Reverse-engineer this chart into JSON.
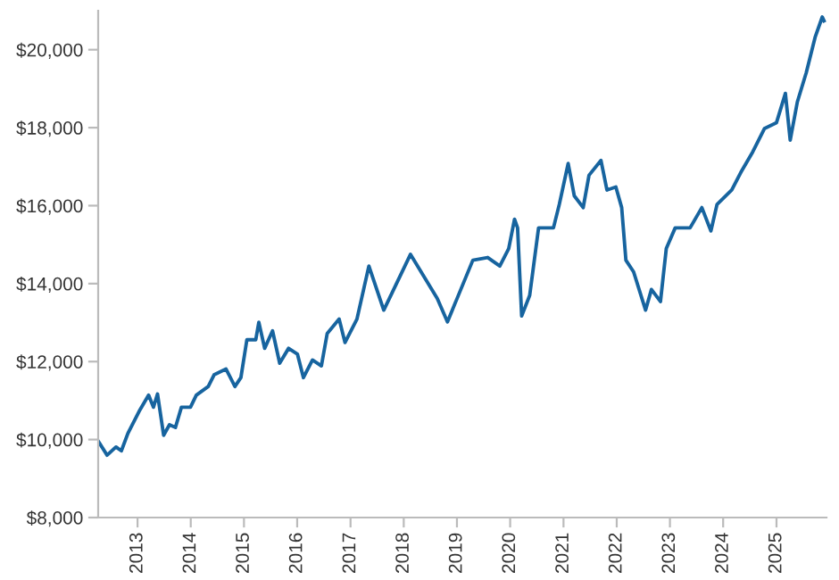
{
  "chart_data": {
    "type": "line",
    "color": "#17649f",
    "x": [
      "2012-04-06",
      "2012-06-06",
      "2012-08-06",
      "2012-09-12",
      "2012-10-27",
      "2013-01-17",
      "2013-03-18",
      "2013-04-20",
      "2013-05-18",
      "2013-06-29",
      "2013-08-08",
      "2013-09-18",
      "2013-10-29",
      "2013-12-30",
      "2014-02-08",
      "2014-05-01",
      "2014-06-10",
      "2014-08-31",
      "2014-10-31",
      "2014-12-11",
      "2015-01-21",
      "2015-03-23",
      "2015-04-13",
      "2015-05-23",
      "2015-07-16",
      "2015-09-03",
      "2015-11-03",
      "2016-01-03",
      "2016-02-13",
      "2016-04-15",
      "2016-06-15",
      "2016-07-25",
      "2016-10-15",
      "2016-11-24",
      "2017-02-14",
      "2017-05-07",
      "2017-08-17",
      "2018-02-16",
      "2018-08-19",
      "2018-10-28",
      "2019-04-20",
      "2019-07-31",
      "2019-10-22",
      "2019-12-22",
      "2020-01-31",
      "2020-02-21",
      "2020-03-20",
      "2020-05-14",
      "2020-07-14",
      "2020-10-24",
      "2020-12-03",
      "2021-02-02",
      "2021-03-16",
      "2021-05-16",
      "2021-06-25",
      "2021-09-15",
      "2021-10-26",
      "2021-12-26",
      "2022-02-04",
      "2022-03-05",
      "2022-04-27",
      "2022-07-18",
      "2022-08-27",
      "2022-10-28",
      "2022-12-07",
      "2023-02-06",
      "2023-05-19",
      "2023-08-08",
      "2023-10-09",
      "2023-11-20",
      "2024-02-29",
      "2024-05-01",
      "2024-07-22",
      "2024-10-11",
      "2025-01-01",
      "2025-03-03",
      "2025-04-05",
      "2025-05-24",
      "2025-07-24",
      "2025-09-23",
      "2025-11-11",
      "2025-11-23"
    ],
    "values": [
      9960,
      9600,
      9810,
      9710,
      10160,
      10760,
      11140,
      10830,
      11170,
      10110,
      10380,
      10310,
      10830,
      10830,
      11140,
      11360,
      11660,
      11810,
      11360,
      11590,
      12560,
      12560,
      13010,
      12340,
      12790,
      11960,
      12340,
      12190,
      11590,
      12040,
      11890,
      12720,
      13090,
      12490,
      13090,
      14450,
      13320,
      14750,
      13620,
      13020,
      14600,
      14670,
      14450,
      14900,
      15650,
      15430,
      13170,
      13700,
      15430,
      15430,
      16030,
      17080,
      16250,
      15950,
      16780,
      17160,
      16400,
      16480,
      15950,
      14600,
      14300,
      13320,
      13850,
      13540,
      14900,
      15430,
      15430,
      15950,
      15350,
      16030,
      16400,
      16850,
      17380,
      17980,
      18130,
      18880,
      17680,
      18660,
      19410,
      20320,
      20840,
      20740
    ],
    "xlim": [
      "2012-04-06",
      "2025-12-10"
    ],
    "xticks": [
      {
        "value": "2013-01-01",
        "label": "2013"
      },
      {
        "value": "2014-01-01",
        "label": "2014"
      },
      {
        "value": "2015-01-01",
        "label": "2015"
      },
      {
        "value": "2016-01-01",
        "label": "2016"
      },
      {
        "value": "2017-01-01",
        "label": "2017"
      },
      {
        "value": "2018-01-01",
        "label": "2018"
      },
      {
        "value": "2019-01-01",
        "label": "2019"
      },
      {
        "value": "2020-01-01",
        "label": "2020"
      },
      {
        "value": "2021-01-01",
        "label": "2021"
      },
      {
        "value": "2022-01-01",
        "label": "2022"
      },
      {
        "value": "2023-01-01",
        "label": "2023"
      },
      {
        "value": "2024-01-01",
        "label": "2024"
      },
      {
        "value": "2025-01-01",
        "label": "2025"
      }
    ],
    "ylim": [
      8000,
      21000
    ],
    "yticks": [
      {
        "value": 8000,
        "label": "$8,000"
      },
      {
        "value": 10000,
        "label": "$10,000"
      },
      {
        "value": 12000,
        "label": "$12,000"
      },
      {
        "value": 14000,
        "label": "$14,000"
      },
      {
        "value": 16000,
        "label": "$16,000"
      },
      {
        "value": 18000,
        "label": "$18,000"
      },
      {
        "value": 20000,
        "label": "$20,000"
      }
    ],
    "grid": false,
    "legend": false,
    "marker": "none",
    "line_style": "solid"
  }
}
